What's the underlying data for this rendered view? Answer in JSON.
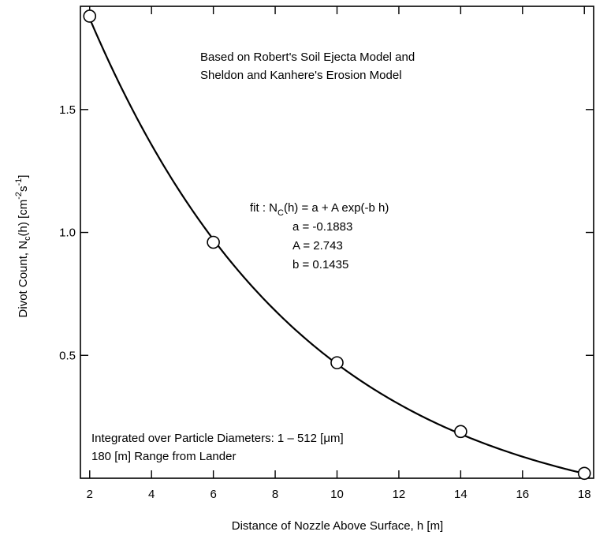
{
  "chart_data": {
    "type": "scatter",
    "title": "",
    "xlabel": "Distance of Nozzle Above Surface, h [m]",
    "ylabel_parts": {
      "main": "Divot Count, N",
      "sub_c": "c",
      "mid": "(h)  [cm",
      "sup_neg2": "-2",
      "s": "s",
      "sup_neg1": "-1",
      "close": "]"
    },
    "xlim": [
      1.7,
      18.3
    ],
    "ylim": [
      0.0,
      1.92
    ],
    "x_ticks": [
      2,
      4,
      6,
      8,
      10,
      12,
      14,
      16,
      18
    ],
    "x_tick_labels": [
      "2",
      "4",
      "6",
      "8",
      "10",
      "12",
      "14",
      "16",
      "18"
    ],
    "y_ticks": [
      0.5,
      1.0,
      1.5
    ],
    "y_tick_labels": [
      "0.5",
      "1.0",
      "1.5"
    ],
    "grid": false,
    "series": [
      {
        "points": [
          {
            "x": 2,
            "y": 1.88
          },
          {
            "x": 6,
            "y": 0.96
          },
          {
            "x": 10,
            "y": 0.47
          },
          {
            "x": 14,
            "y": 0.19
          },
          {
            "x": 18,
            "y": 0.02
          }
        ],
        "marker": "open-circle",
        "color": "#000000"
      }
    ],
    "fit": {
      "label_prefix": "fit :  N",
      "label_sub": "C",
      "label_suffix": "(h) = a + A exp(-b h)",
      "a_text": "a = -0.1883",
      "A_text": "A = 2.743",
      "b_text": "b = 0.1435",
      "a": -0.1883,
      "A": 2.743,
      "b": 0.1435,
      "x_range": [
        2,
        18
      ]
    },
    "annotations": {
      "top_line1": "Based on Robert's Soil Ejecta Model and",
      "top_line2": "Sheldon and Kanhere's Erosion Model",
      "bottom_line1": "Integrated over Particle Diameters: 1 – 512 [μm]",
      "bottom_line2": "180 [m] Range from Lander"
    }
  }
}
